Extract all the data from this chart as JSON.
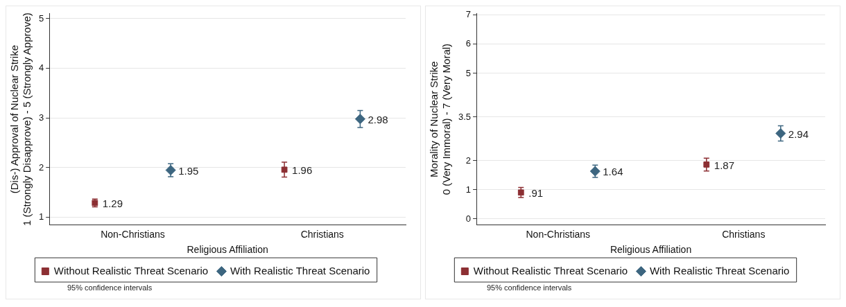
{
  "chart_data": [
    {
      "type": "scatter",
      "xlabel": "Religious Affiliation",
      "ylabel": "(Dis-) Approval of Nuclear Strike\n1 (Strongly Disapprove) - 5 (Strongly Approve)",
      "categories": [
        "Non-Christians",
        "Christians"
      ],
      "ylim": [
        0.85,
        5.1
      ],
      "yticks": [
        1,
        2,
        3,
        4,
        5
      ],
      "grid": "y",
      "legend": "bottom",
      "annotations": [
        "95% confidence intervals"
      ],
      "series": [
        {
          "name": "Without Realistic Threat Scenario",
          "color": "#8c2f33",
          "marker": "square",
          "values": [
            1.29,
            1.96
          ],
          "errors": [
            0.08,
            0.15
          ],
          "value_labels": [
            "1.29",
            "1.96"
          ]
        },
        {
          "name": "With Realistic Threat Scenario",
          "color": "#3d6680",
          "marker": "diamond",
          "values": [
            1.95,
            2.98
          ],
          "errors": [
            0.13,
            0.17
          ],
          "value_labels": [
            "1.95",
            "2.98"
          ]
        }
      ]
    },
    {
      "type": "scatter",
      "xlabel": "Religious Affiliation",
      "ylabel": "Morality of Nuclear Strike\n0 (Very Immoral) - 7 (Very Moral)",
      "categories": [
        "Non-Christians",
        "Christians"
      ],
      "ylim": [
        -0.2,
        7.05
      ],
      "yticks": [
        0,
        1,
        2,
        3.5,
        5,
        6,
        7
      ],
      "grid": "y",
      "legend": "bottom",
      "annotations": [
        "95% confidence intervals"
      ],
      "series": [
        {
          "name": "Without Realistic Threat Scenario",
          "color": "#8c2f33",
          "marker": "square",
          "values": [
            0.91,
            1.87
          ],
          "errors": [
            0.17,
            0.22
          ],
          "value_labels": [
            ".91",
            "1.87"
          ]
        },
        {
          "name": "With Realistic Threat Scenario",
          "color": "#3d6680",
          "marker": "diamond",
          "values": [
            1.64,
            2.94
          ],
          "errors": [
            0.21,
            0.26
          ],
          "value_labels": [
            "1.64",
            "2.94"
          ]
        }
      ]
    }
  ]
}
